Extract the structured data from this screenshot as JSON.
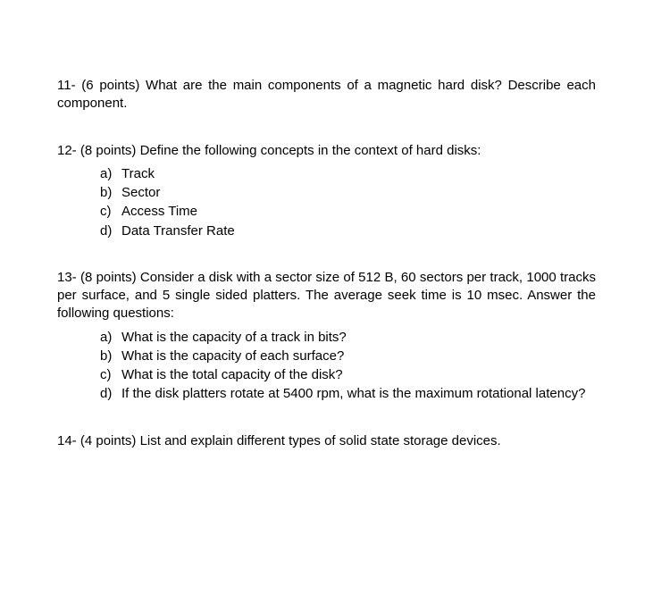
{
  "colors": {
    "background": "#ffffff",
    "text": "#000000"
  },
  "typography": {
    "font_family": "Arial, Helvetica, sans-serif",
    "font_size_pt": 15,
    "line_height": 1.35
  },
  "questions": [
    {
      "number": "11-",
      "points": "(6 points)",
      "stem": "What are the main components of a magnetic hard disk? Describe each component.",
      "justify": true,
      "sub": []
    },
    {
      "number": "12-",
      "points": "(8 points)",
      "stem": "Define the following concepts in the context of hard disks:",
      "justify": false,
      "sub": [
        {
          "label": "a)",
          "text": "Track"
        },
        {
          "label": "b)",
          "text": "Sector"
        },
        {
          "label": "c)",
          "text": "Access Time"
        },
        {
          "label": "d)",
          "text": "Data Transfer Rate"
        }
      ]
    },
    {
      "number": "13-",
      "points": "(8 points)",
      "stem": "Consider a disk with a sector size of 512 B, 60 sectors per track, 1000 tracks per surface, and 5 single sided platters. The average seek time is 10 msec. Answer the following questions:",
      "justify": true,
      "sub": [
        {
          "label": "a)",
          "text": "What is the capacity of a track in bits?"
        },
        {
          "label": "b)",
          "text": "What is the capacity of each surface?"
        },
        {
          "label": "c)",
          "text": "What is the total capacity of the disk?"
        },
        {
          "label": "d)",
          "text": "If the disk platters rotate at 5400 rpm, what is the maximum rotational latency?",
          "justify": true
        }
      ]
    },
    {
      "number": "14-",
      "points": "(4 points)",
      "stem": "List and explain different types of solid state storage devices.",
      "justify": false,
      "sub": []
    }
  ]
}
